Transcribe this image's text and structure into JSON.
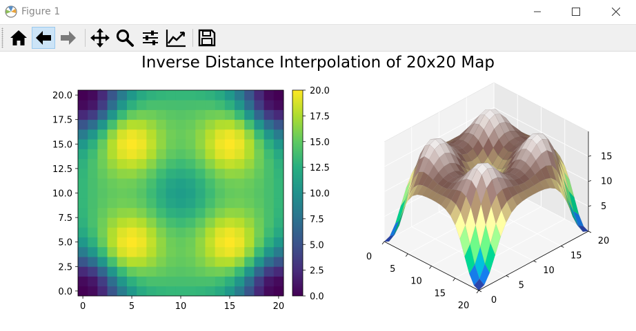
{
  "window": {
    "title": "Figure 1",
    "controls": [
      "minimize",
      "maximize",
      "close"
    ]
  },
  "toolbar": {
    "buttons": [
      {
        "name": "home",
        "icon": "home-icon"
      },
      {
        "name": "back",
        "icon": "arrow-left-icon",
        "active": true
      },
      {
        "name": "forward",
        "icon": "arrow-right-icon",
        "disabled": true
      },
      {
        "name": "pan",
        "icon": "move-icon"
      },
      {
        "name": "zoom",
        "icon": "magnifier-icon"
      },
      {
        "name": "configure-subplots",
        "icon": "sliders-icon"
      },
      {
        "name": "edit-axes",
        "icon": "line-chart-icon"
      },
      {
        "name": "save",
        "icon": "floppy-disk-icon"
      }
    ]
  },
  "figure": {
    "title": "Inverse Distance Interpolation of 20x20 Map"
  },
  "chart_data": [
    {
      "type": "heatmap",
      "colormap": "viridis",
      "x_ticks": [
        "0",
        "5",
        "10",
        "15",
        "20"
      ],
      "y_ticks": [
        "0.0",
        "2.5",
        "5.0",
        "7.5",
        "10.0",
        "12.5",
        "15.0",
        "17.5",
        "20.0"
      ],
      "xlim": [
        -0.5,
        20.5
      ],
      "ylim": [
        -0.5,
        20.5
      ],
      "grid_size": [
        21,
        21
      ],
      "colorbar": {
        "range": [
          0,
          20
        ],
        "ticks": [
          "0.0",
          "2.5",
          "5.0",
          "7.5",
          "10.0",
          "12.5",
          "15.0",
          "17.5",
          "20.0"
        ]
      },
      "features": {
        "peaks": [
          [
            5,
            5
          ],
          [
            5,
            15
          ],
          [
            15,
            5
          ],
          [
            15,
            15
          ]
        ],
        "peak_value": 20,
        "center_value": 11,
        "corner_value": 0
      }
    },
    {
      "type": "surface3d",
      "colormap": "terrain",
      "x_ticks": [
        "0",
        "5",
        "10",
        "15",
        "20"
      ],
      "y_ticks": [
        "0",
        "5",
        "10",
        "15",
        "20"
      ],
      "z_ticks": [
        "5",
        "10",
        "15"
      ],
      "xlim": [
        0,
        20
      ],
      "ylim": [
        0,
        20
      ],
      "zlim": [
        0,
        20
      ]
    }
  ]
}
